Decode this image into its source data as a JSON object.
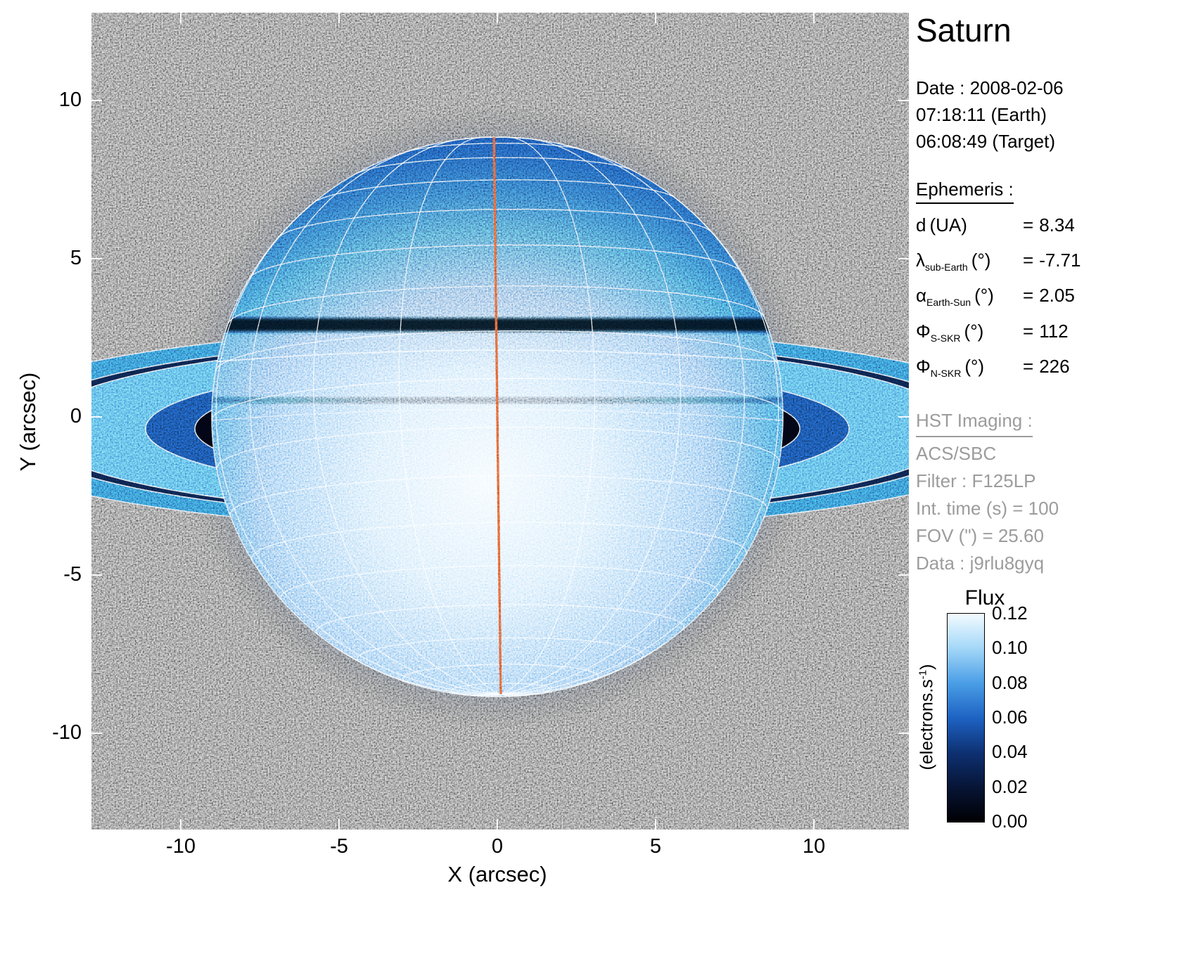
{
  "title": "Saturn",
  "observation": {
    "lines": [
      "Date : 2008-02-06",
      "07:18:11 (Earth)",
      "06:08:49 (Target)"
    ]
  },
  "ephemeris": {
    "heading": "Ephemeris :",
    "rows": [
      {
        "symbol": "d",
        "sub": "",
        "unit": "(UA)",
        "equals": "=",
        "value": "8.34"
      },
      {
        "symbol": "λ",
        "sub": "sub-Earth",
        "unit": "(°)",
        "equals": "=",
        "value": "-7.71"
      },
      {
        "symbol": "α",
        "sub": "Earth-Sun",
        "unit": "(°)",
        "equals": "=",
        "value": "2.05"
      },
      {
        "symbol": "Φ",
        "sub": "S-SKR",
        "unit": "(°)",
        "equals": "=",
        "value": "112"
      },
      {
        "symbol": "Φ",
        "sub": "N-SKR",
        "unit": "(°)",
        "equals": "=",
        "value": "226"
      }
    ]
  },
  "hst": {
    "heading": "HST Imaging :",
    "lines": [
      "ACS/SBC",
      "Filter : F125LP",
      "Int. time (s) = 100",
      "FOV (\") = 25.60",
      "Data : j9rlu8gyq"
    ]
  },
  "axes": {
    "xlabel": "X (arcsec)",
    "ylabel": "Y (arcsec)",
    "xticklabels": [
      "-10",
      "-5",
      "0",
      "5",
      "10"
    ],
    "yticklabels": [
      "10",
      "5",
      "0",
      "-5",
      "-10"
    ]
  },
  "colorbar": {
    "title": "Flux",
    "unit_pre": "(electrons.s",
    "unit_sup": "-1",
    "unit_post": ")",
    "tick_labels": [
      "0.12",
      "0.10",
      "0.08",
      "0.06",
      "0.04",
      "0.02",
      "0.00"
    ]
  },
  "chart_data": {
    "type": "heatmap",
    "title": "Saturn",
    "description": "HST ACS/SBC far-UV (F125LP) image of Saturn with near edge-on rings, overlaid planetary latitude-longitude grid (white) and sub-Earth meridian (red line), shown in a black-blue-white flux colormap",
    "xlabel": "X (arcsec)",
    "ylabel": "Y (arcsec)",
    "xlim": [
      -12.8,
      13.0
    ],
    "ylim": [
      -13.0,
      12.8
    ],
    "xticks": [
      -10,
      -5,
      0,
      5,
      10
    ],
    "yticks": [
      -10,
      -5,
      0,
      5,
      10
    ],
    "background": "#000000",
    "grid_color": "#ffffff",
    "planet": {
      "center_arcsec": [
        0,
        0
      ],
      "equatorial_radius_arcsec": 9.0,
      "sub_earth_latitude_deg": -7.71,
      "meridian_color": "#d5502c",
      "lat_step_deg": 10,
      "lon_step_deg": 20
    },
    "rings": {
      "appearance": "near edge-on, extending horizontally across the full field, dark shadow lane across the disk",
      "outer_radius_arcsec": 13.9
    },
    "ephemeris_values": {
      "d_UA": 8.34,
      "lambda_sub_earth_deg": -7.71,
      "alpha_earth_sun_deg": 2.05,
      "phi_s_skr_deg": 112,
      "phi_n_skr_deg": 226
    },
    "instrument": {
      "telescope": "HST",
      "camera": "ACS/SBC",
      "filter": "F125LP",
      "int_time_s": 100,
      "fov_arcsec": 25.6,
      "dataset": "j9rlu8gyq"
    },
    "colorbar": {
      "label": "Flux",
      "unit": "(electrons.s-1)",
      "min": 0.0,
      "max": 0.12,
      "ticks": [
        0.0,
        0.02,
        0.04,
        0.06,
        0.08,
        0.1,
        0.12
      ],
      "stops": [
        {
          "value": 0.0,
          "color": "#000003"
        },
        {
          "value": 0.02,
          "color": "#071536"
        },
        {
          "value": 0.04,
          "color": "#0e3173"
        },
        {
          "value": 0.06,
          "color": "#1e63c3"
        },
        {
          "value": 0.08,
          "color": "#4a9ee6"
        },
        {
          "value": 0.1,
          "color": "#a3d7f8"
        },
        {
          "value": 0.12,
          "color": "#f3fbff"
        }
      ]
    }
  }
}
